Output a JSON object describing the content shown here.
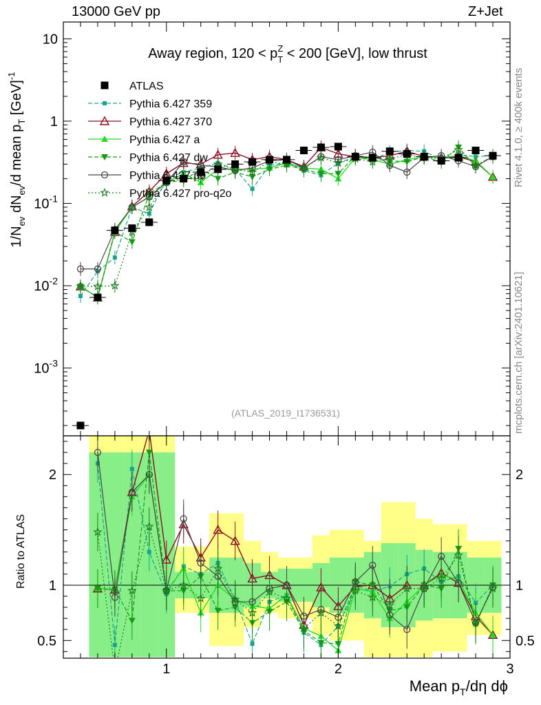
{
  "header": {
    "energy_label": "13000 GeV pp",
    "process_label": "Z+Jet"
  },
  "side_labels": {
    "rivet": "Rivet 4.1.0, ≥ 400k events",
    "mcplots": "mcplots.cern.ch [arXiv:2401.10621]"
  },
  "colors": {
    "atlas": "#000000",
    "p359": "#1aa38f",
    "p370": "#8b0c22",
    "pa": "#22dd22",
    "pdw": "#169b16",
    "pp0": "#444444",
    "pq2o": "#1a7a1a",
    "band_yellow": "#ffff88",
    "band_green": "#88ee88"
  },
  "chart_data": [
    {
      "type": "line",
      "title": "Away region, 120 < p_T^Z < 200 [GeV], low thrust",
      "title_parts": {
        "main": "Away region, 120 < p",
        "sup": "Z",
        "sub": "T",
        "rest": " < 200 [GeV], low thrust"
      },
      "ylabel": "1/N_ev dN_ev/d mean p_T [GeV]^-1",
      "ylabel_parts": {
        "a": "1/N",
        "a_sub": "ev",
        "b": " dN",
        "b_sub": "ev",
        "c": "/d mean p",
        "c_sub": "T",
        "d": " [GeV]",
        "d_sup": "-1"
      },
      "yscale": "log",
      "ylim": [
        0.00015,
        16
      ],
      "xlim": [
        0.4,
        3.0
      ],
      "yticks": [
        0.001,
        0.01,
        0.1,
        1,
        10
      ],
      "ytick_labels": {
        "mant": "10",
        "exp": [
          "-3",
          "-2",
          "-1",
          "",
          ""
        ],
        "plain": [
          "",
          "",
          "",
          "1",
          "10"
        ]
      },
      "watermark": "(ATLAS_2019_I1736531)",
      "x": [
        0.5,
        0.6,
        0.7,
        0.8,
        0.9,
        1.0,
        1.1,
        1.2,
        1.3,
        1.4,
        1.5,
        1.6,
        1.7,
        1.8,
        1.9,
        2.0,
        2.1,
        2.2,
        2.3,
        2.4,
        2.5,
        2.6,
        2.7,
        2.8,
        2.9
      ],
      "legend": [
        "ATLAS",
        "Pythia 6.427 359",
        "Pythia 6.427 370",
        "Pythia 6.427 a",
        "Pythia 6.427 dw",
        "Pythia 6.427 p0",
        "Pythia 6.427 pro-q2o"
      ],
      "series": [
        {
          "name": "ATLAS",
          "values": [
            0.0002,
            0.0072,
            0.047,
            0.05,
            0.059,
            0.19,
            0.2,
            0.24,
            0.26,
            0.3,
            0.32,
            0.34,
            0.34,
            0.44,
            0.48,
            0.49,
            0.37,
            0.36,
            0.43,
            0.4,
            0.37,
            0.33,
            0.36,
            0.44,
            0.38
          ]
        },
        {
          "name": "Pythia 6.427 359",
          "values": [
            0.0075,
            0.015,
            0.022,
            0.09,
            0.075,
            0.2,
            0.24,
            0.27,
            0.31,
            0.26,
            0.15,
            0.29,
            0.31,
            0.25,
            0.22,
            0.31,
            0.37,
            0.34,
            0.42,
            0.44,
            0.43,
            0.34,
            0.39,
            0.37,
            0.38
          ]
        },
        {
          "name": "Pythia 6.427 370",
          "values": [
            0.0098,
            0.0072,
            0.045,
            0.092,
            0.14,
            0.23,
            0.31,
            0.3,
            0.39,
            0.41,
            0.34,
            0.37,
            0.34,
            0.28,
            0.48,
            0.4,
            0.37,
            0.36,
            0.38,
            0.43,
            0.37,
            0.36,
            0.37,
            0.32,
            0.21
          ]
        },
        {
          "name": "Pythia 6.427 a",
          "values": [
            0.0098,
            0.0072,
            0.045,
            0.09,
            0.12,
            0.18,
            0.23,
            0.18,
            0.26,
            0.26,
            0.26,
            0.27,
            0.31,
            0.27,
            0.26,
            0.2,
            0.36,
            0.34,
            0.3,
            0.34,
            0.37,
            0.36,
            0.38,
            0.33,
            0.21
          ]
        },
        {
          "name": "Pythia 6.427 dw",
          "values": [
            0.0098,
            0.0072,
            0.045,
            0.034,
            0.13,
            0.18,
            0.19,
            0.26,
            0.2,
            0.24,
            0.21,
            0.26,
            0.29,
            0.26,
            0.23,
            0.23,
            0.38,
            0.36,
            0.33,
            0.32,
            0.37,
            0.32,
            0.48,
            0.28,
            0.38
          ]
        },
        {
          "name": "Pythia 6.427 p0",
          "values": [
            0.016,
            0.016,
            0.048,
            0.09,
            0.12,
            0.18,
            0.32,
            0.29,
            0.28,
            0.25,
            0.27,
            0.33,
            0.34,
            0.27,
            0.37,
            0.34,
            0.38,
            0.42,
            0.29,
            0.24,
            0.36,
            0.38,
            0.33,
            0.28,
            0.37
          ]
        },
        {
          "name": "Pythia 6.427 pro-q2o",
          "values": [
            0.0098,
            0.0098,
            0.01,
            0.045,
            0.09,
            0.18,
            0.2,
            0.21,
            0.3,
            0.26,
            0.24,
            0.32,
            0.3,
            0.27,
            0.36,
            0.31,
            0.35,
            0.32,
            0.35,
            0.39,
            0.36,
            0.35,
            0.45,
            0.29,
            0.37
          ]
        }
      ]
    },
    {
      "type": "line",
      "ylabel": "Ratio to ATLAS",
      "xlabel": "Mean p_T/dη dϕ",
      "xlabel_parts": {
        "a": "Mean p",
        "a_sub": "T",
        "b": "/dη dϕ"
      },
      "ylim": [
        0.34,
        2.35
      ],
      "xlim": [
        0.4,
        3.0
      ],
      "yticks": [
        0.5,
        1,
        2
      ],
      "ytick_labels": [
        "0.5",
        "1",
        "2"
      ],
      "xticks": [
        1,
        2,
        3
      ],
      "xtick_labels": [
        "1",
        "2",
        "3"
      ],
      "bands": {
        "x_low": [
          0.55,
          0.65,
          0.75,
          0.85,
          0.95,
          1.05,
          1.15,
          1.25,
          1.35,
          1.45,
          1.55,
          1.65,
          1.75,
          1.85,
          1.95,
          2.05,
          2.15,
          2.25,
          2.35,
          2.45,
          2.55,
          2.65,
          2.75,
          2.85
        ],
        "x_high": [
          0.65,
          0.75,
          0.85,
          0.95,
          1.05,
          1.15,
          1.25,
          1.35,
          1.45,
          1.55,
          1.65,
          1.75,
          1.85,
          1.95,
          2.05,
          2.15,
          2.25,
          2.35,
          2.45,
          2.55,
          2.65,
          2.75,
          2.85,
          2.95
        ],
        "yellow_low": [
          0.35,
          0.35,
          0.35,
          0.35,
          0.35,
          0.75,
          0.75,
          0.45,
          0.45,
          0.62,
          0.75,
          0.7,
          0.7,
          0.55,
          0.5,
          0.5,
          0.35,
          0.35,
          0.35,
          0.35,
          0.4,
          0.4,
          0.55,
          0.55
        ],
        "yellow_high": [
          2.35,
          2.35,
          2.35,
          2.35,
          2.35,
          1.35,
          1.35,
          1.65,
          1.65,
          1.4,
          1.3,
          1.25,
          1.25,
          1.45,
          1.5,
          1.5,
          1.4,
          1.75,
          1.75,
          1.6,
          1.55,
          1.55,
          1.4,
          1.4
        ],
        "green_low": [
          0.35,
          0.35,
          0.35,
          0.35,
          0.35,
          0.88,
          0.88,
          0.75,
          0.75,
          0.8,
          0.88,
          0.85,
          0.85,
          0.8,
          0.75,
          0.75,
          0.7,
          0.62,
          0.62,
          0.68,
          0.7,
          0.7,
          0.75,
          0.75
        ],
        "green_high": [
          2.2,
          2.2,
          2.2,
          2.2,
          2.2,
          1.12,
          1.12,
          1.25,
          1.25,
          1.2,
          1.12,
          1.15,
          1.15,
          1.2,
          1.25,
          1.25,
          1.3,
          1.38,
          1.38,
          1.32,
          1.3,
          1.3,
          1.25,
          1.25
        ]
      },
      "series": [
        {
          "name": "Pythia 6.427 359",
          "values": [
            null,
            2.1,
            0.46,
            2.05,
            1.3,
            0.92,
            1.17,
            1.1,
            1.2,
            0.87,
            0.47,
            0.85,
            0.91,
            0.57,
            0.46,
            0.63,
            1.0,
            0.94,
            0.99,
            1.1,
            1.15,
            1.03,
            1.08,
            0.84,
            1.0
          ]
        },
        {
          "name": "Pythia 6.427 370",
          "values": [
            null,
            0.97,
            0.96,
            1.84,
            2.4,
            1.23,
            1.55,
            1.25,
            1.5,
            1.4,
            1.06,
            1.09,
            1.0,
            0.64,
            0.98,
            0.81,
            0.99,
            1.0,
            0.88,
            1.0,
            1.0,
            1.11,
            1.02,
            0.72,
            0.55
          ]
        },
        {
          "name": "Pythia 6.427 a",
          "values": [
            null,
            0.97,
            0.96,
            1.8,
            2.0,
            0.95,
            1.15,
            0.75,
            1.0,
            0.87,
            0.81,
            0.79,
            0.91,
            0.61,
            0.54,
            0.41,
            0.97,
            0.94,
            0.7,
            0.85,
            1.0,
            1.09,
            1.05,
            0.75,
            0.55
          ]
        },
        {
          "name": "Pythia 6.427 dw",
          "values": [
            null,
            0.97,
            0.96,
            0.68,
            2.2,
            0.95,
            0.95,
            1.08,
            0.77,
            0.8,
            0.66,
            0.76,
            0.85,
            0.59,
            0.48,
            0.47,
            1.03,
            1.0,
            0.77,
            0.8,
            1.0,
            0.97,
            1.33,
            0.64,
            1.0
          ]
        },
        {
          "name": "Pythia 6.427 p0",
          "values": [
            null,
            2.2,
            0.89,
            1.84,
            2.0,
            0.95,
            1.6,
            1.2,
            1.08,
            0.85,
            0.85,
            0.97,
            1.0,
            0.72,
            0.78,
            0.71,
            1.03,
            1.18,
            0.73,
            0.6,
            0.97,
            1.26,
            1.02,
            0.66,
            0.98
          ]
        },
        {
          "name": "Pythia 6.427 pro-q2o",
          "values": [
            null,
            1.48,
            0.22,
            0.95,
            1.53,
            0.95,
            1.0,
            0.88,
            1.15,
            0.87,
            0.75,
            0.94,
            0.88,
            0.61,
            0.75,
            0.63,
            0.95,
            0.89,
            0.82,
            0.97,
            0.97,
            1.06,
            1.27,
            0.66,
            0.97
          ]
        }
      ]
    }
  ]
}
